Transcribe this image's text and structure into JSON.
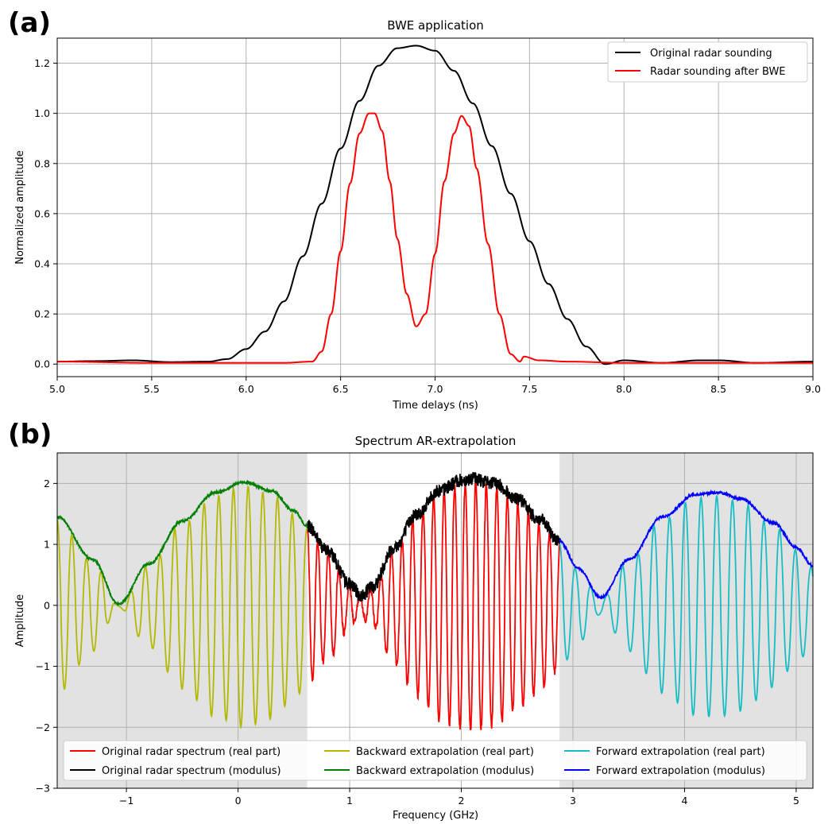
{
  "panels": {
    "a": {
      "letter": "(a)"
    },
    "b": {
      "letter": "(b)"
    }
  },
  "chart_data": [
    {
      "type": "line",
      "title": "BWE application",
      "xlabel": "Time delays (ns)",
      "ylabel": "Normalized amplitude",
      "xlim": [
        5.0,
        9.0
      ],
      "ylim": [
        -0.05,
        1.3
      ],
      "xticks": [
        "5.0",
        "5.5",
        "6.0",
        "6.5",
        "7.0",
        "7.5",
        "8.0",
        "8.5",
        "9.0"
      ],
      "yticks": [
        "0.0",
        "0.2",
        "0.4",
        "0.6",
        "0.8",
        "1.0",
        "1.2"
      ],
      "grid": true,
      "legend_position": "top-right",
      "series": [
        {
          "name": "Original radar sounding",
          "color": "#000000",
          "x": [
            5.0,
            5.2,
            5.4,
            5.6,
            5.8,
            5.9,
            6.0,
            6.1,
            6.2,
            6.3,
            6.4,
            6.5,
            6.6,
            6.7,
            6.8,
            6.9,
            7.0,
            7.1,
            7.2,
            7.3,
            7.4,
            7.5,
            7.6,
            7.7,
            7.8,
            7.9,
            8.0,
            8.2,
            8.4,
            8.5,
            8.7,
            9.0
          ],
          "y": [
            0.01,
            0.012,
            0.015,
            0.008,
            0.01,
            0.02,
            0.06,
            0.13,
            0.25,
            0.43,
            0.64,
            0.86,
            1.05,
            1.19,
            1.26,
            1.27,
            1.25,
            1.17,
            1.04,
            0.87,
            0.68,
            0.49,
            0.32,
            0.18,
            0.07,
            0.0,
            0.015,
            0.005,
            0.015,
            0.015,
            0.005,
            0.01
          ]
        },
        {
          "name": "Radar sounding after BWE",
          "color": "#ff0000",
          "x": [
            5.0,
            5.5,
            6.0,
            6.2,
            6.35,
            6.4,
            6.45,
            6.5,
            6.55,
            6.6,
            6.65,
            6.68,
            6.72,
            6.76,
            6.8,
            6.85,
            6.9,
            6.95,
            7.0,
            7.05,
            7.1,
            7.14,
            7.18,
            7.22,
            7.28,
            7.34,
            7.4,
            7.45,
            7.47,
            7.55,
            7.7,
            8.0,
            9.0
          ],
          "y": [
            0.01,
            0.005,
            0.005,
            0.005,
            0.01,
            0.05,
            0.2,
            0.45,
            0.72,
            0.92,
            1.0,
            1.0,
            0.93,
            0.73,
            0.5,
            0.28,
            0.15,
            0.2,
            0.44,
            0.73,
            0.92,
            0.99,
            0.95,
            0.78,
            0.48,
            0.2,
            0.04,
            0.01,
            0.03,
            0.015,
            0.01,
            0.005,
            0.005
          ]
        }
      ]
    },
    {
      "type": "line",
      "title": "Spectrum AR-extrapolation",
      "xlabel": "Frequency (GHz)",
      "ylabel": "Amplitude",
      "xlim": [
        -1.62,
        5.15
      ],
      "ylim": [
        -3,
        2.5
      ],
      "xticks": [
        "−1",
        "0",
        "1",
        "2",
        "3",
        "4",
        "5"
      ],
      "yticks": [
        "−3",
        "−2",
        "−1",
        "0",
        "1",
        "2"
      ],
      "grid": true,
      "shaded_regions": [
        [
          -1.62,
          0.62
        ],
        [
          2.88,
          5.15
        ]
      ],
      "legend_position": "bottom",
      "legend_columns": 3,
      "series": [
        {
          "name": "Original radar spectrum (real part)",
          "color": "#ff0000",
          "x_range": [
            0.62,
            2.88
          ],
          "envelope": "modulus",
          "cycles_per_ghz": 10.6
        },
        {
          "name": "Original radar spectrum (modulus)",
          "color": "#000000",
          "x_range": [
            0.62,
            2.88
          ],
          "x": [
            0.62,
            0.8,
            1.0,
            1.1,
            1.2,
            1.4,
            1.6,
            1.8,
            2.0,
            2.1,
            2.3,
            2.5,
            2.7,
            2.88
          ],
          "y": [
            1.3,
            0.9,
            0.35,
            0.15,
            0.3,
            0.95,
            1.5,
            1.88,
            2.05,
            2.08,
            2.0,
            1.75,
            1.4,
            1.05
          ]
        },
        {
          "name": "Backward extrapolation (real part)",
          "color": "#b5b800",
          "x_range": [
            -1.62,
            0.62
          ],
          "envelope": "modulus",
          "cycles_per_ghz": 7.6
        },
        {
          "name": "Backward extrapolation (modulus)",
          "color": "#007f00",
          "x_range": [
            -1.62,
            0.62
          ],
          "x": [
            -1.62,
            -1.3,
            -1.07,
            -0.8,
            -0.5,
            -0.2,
            0.05,
            0.3,
            0.5,
            0.62
          ],
          "y": [
            1.45,
            0.75,
            0.02,
            0.68,
            1.38,
            1.85,
            2.02,
            1.88,
            1.55,
            1.3
          ]
        },
        {
          "name": "Forward extrapolation (real part)",
          "color": "#17bdc4",
          "x_range": [
            2.88,
            5.15
          ],
          "envelope": "modulus",
          "cycles_per_ghz": 7.1
        },
        {
          "name": "Forward extrapolation (modulus)",
          "color": "#0000ff",
          "x_range": [
            2.88,
            5.15
          ],
          "x": [
            2.88,
            3.05,
            3.25,
            3.5,
            3.8,
            4.1,
            4.3,
            4.5,
            4.8,
            5.0,
            5.15
          ],
          "y": [
            1.05,
            0.6,
            0.13,
            0.75,
            1.45,
            1.82,
            1.85,
            1.75,
            1.35,
            0.95,
            0.65
          ]
        }
      ]
    }
  ]
}
